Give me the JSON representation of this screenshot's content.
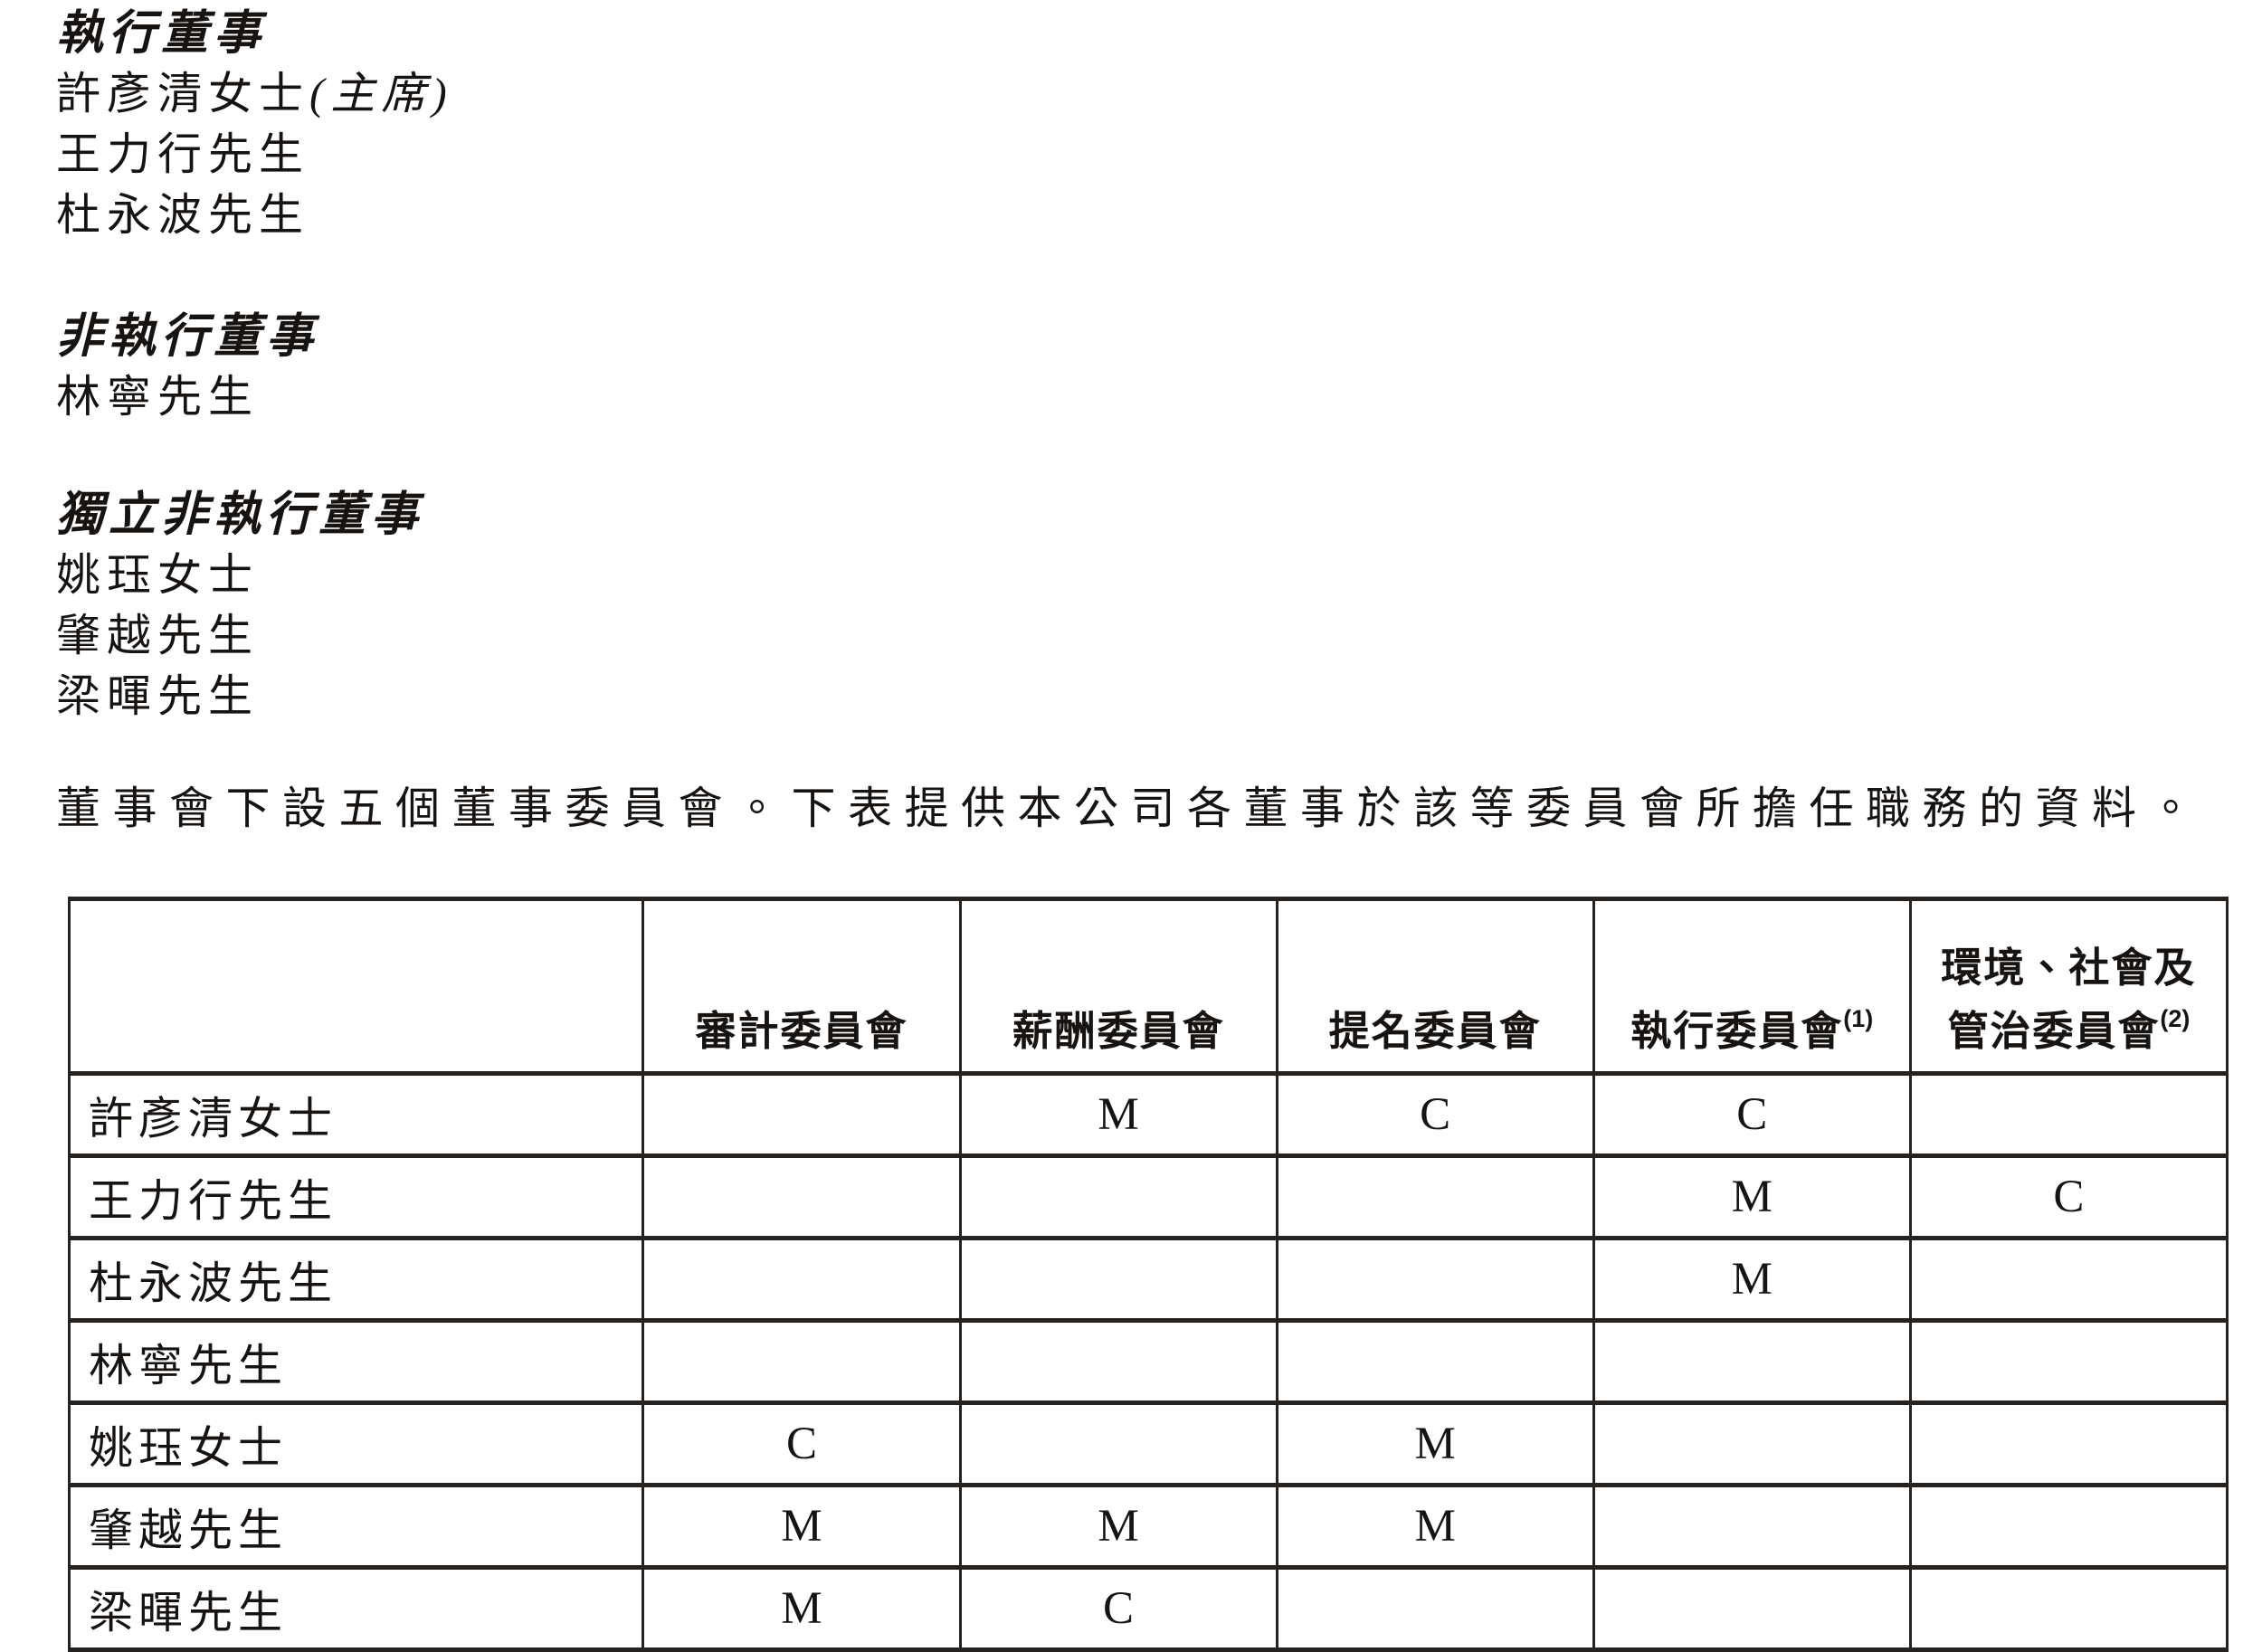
{
  "sections": {
    "executive": {
      "heading": "執行董事",
      "members": [
        "許彥清女士",
        "王力行先生",
        "杜永波先生"
      ],
      "chair_suffix": "(主席)"
    },
    "non_executive": {
      "heading": "非執行董事",
      "members": [
        "林寧先生"
      ]
    },
    "independent": {
      "heading": "獨立非執行董事",
      "members": [
        "姚珏女士",
        "肇越先生",
        "梁暉先生"
      ]
    }
  },
  "intro_paragraph": "董事會下設五個董事委員會。下表提供本公司各董事於該等委員會所擔任職務的資料。",
  "table": {
    "header": {
      "name_col": "",
      "audit": "審計委員會",
      "remuneration": "薪酬委員會",
      "nomination": "提名委員會",
      "executive": "執行委員會",
      "executive_note": "(1)",
      "esg_line1": "環境、社會及",
      "esg_line2": "管治委員會",
      "esg_note": "(2)"
    },
    "rows": [
      {
        "name": "許彥清女士",
        "audit": "",
        "remuneration": "M",
        "nomination": "C",
        "executive": "C",
        "esg": ""
      },
      {
        "name": "王力行先生",
        "audit": "",
        "remuneration": "",
        "nomination": "",
        "executive": "M",
        "esg": "C"
      },
      {
        "name": "杜永波先生",
        "audit": "",
        "remuneration": "",
        "nomination": "",
        "executive": "M",
        "esg": ""
      },
      {
        "name": "林寧先生",
        "audit": "",
        "remuneration": "",
        "nomination": "",
        "executive": "",
        "esg": ""
      },
      {
        "name": "姚珏女士",
        "audit": "C",
        "remuneration": "",
        "nomination": "M",
        "executive": "",
        "esg": ""
      },
      {
        "name": "肇越先生",
        "audit": "M",
        "remuneration": "M",
        "nomination": "M",
        "executive": "",
        "esg": ""
      },
      {
        "name": "梁暉先生",
        "audit": "M",
        "remuneration": "C",
        "nomination": "",
        "executive": "",
        "esg": ""
      }
    ]
  }
}
